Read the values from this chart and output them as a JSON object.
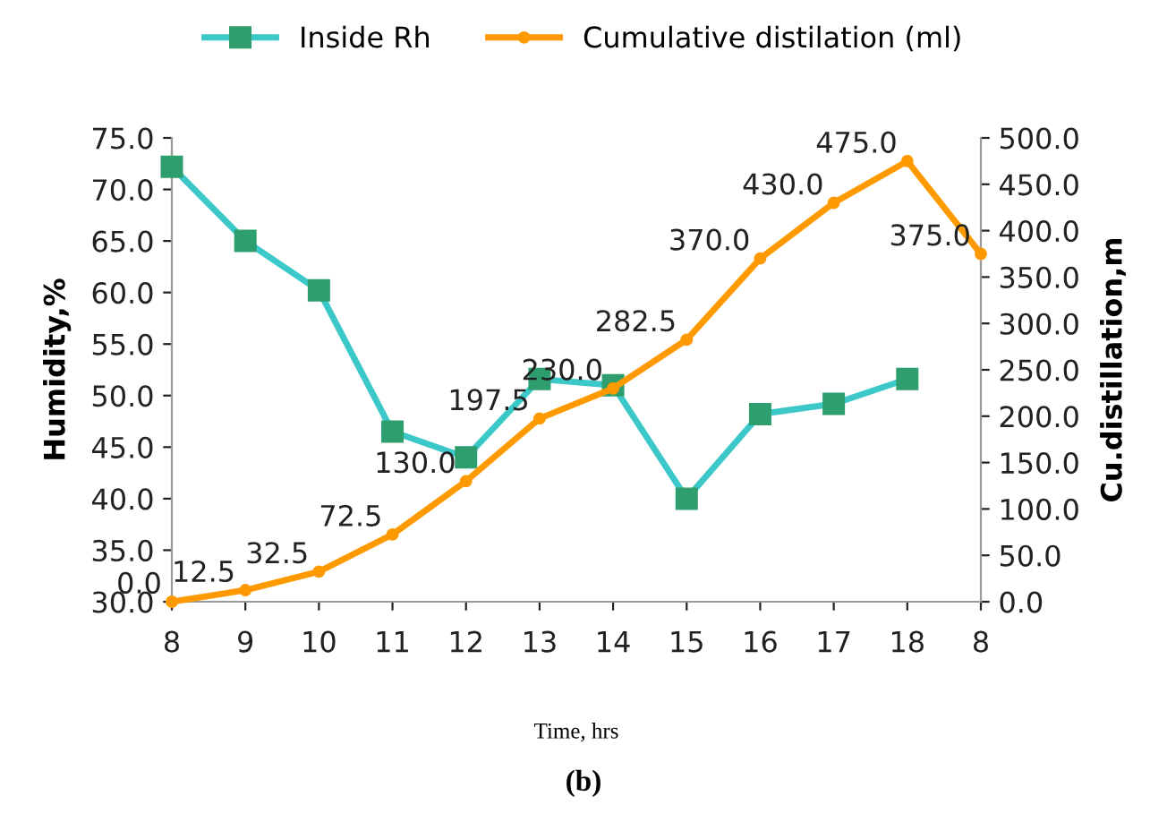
{
  "chart_data": {
    "type": "line",
    "title": "(b)",
    "xlabel": "Time, hrs",
    "ylabel": "Humidity,%",
    "y2label": "Cu.distillation,m",
    "categories": [
      "8",
      "9",
      "10",
      "11",
      "12",
      "13",
      "14",
      "15",
      "16",
      "17",
      "18",
      "8"
    ],
    "series": [
      {
        "name": "Inside Rh",
        "color": "#3cc8c8",
        "marker": "square",
        "values": [
          72.2,
          65.0,
          60.2,
          46.5,
          44.0,
          51.6,
          51.0,
          40.0,
          48.2,
          49.2,
          51.6,
          null
        ]
      },
      {
        "name": "Cumulative distilation (ml)",
        "color": "#ff9900",
        "marker": "circle",
        "axis": "y2",
        "value_labels": [
          "0.0",
          "12.5",
          "32.5",
          "72.5",
          "130.0",
          "197.5",
          "230.0",
          "282.5",
          "370.0",
          "430.0",
          "475.0",
          "375.0"
        ],
        "values": [
          0.0,
          12.5,
          32.5,
          72.5,
          130.0,
          197.5,
          230.0,
          282.5,
          370.0,
          430.0,
          475.0,
          375.0
        ]
      }
    ],
    "ylim": [
      30,
      75
    ],
    "yticks": [
      {
        "value": 30,
        "label": "30.0"
      },
      {
        "value": 35,
        "label": "35.0"
      },
      {
        "value": 40,
        "label": "40.0"
      },
      {
        "value": 45,
        "label": "45.0"
      },
      {
        "value": 50,
        "label": "50.0"
      },
      {
        "value": 55,
        "label": "55.0"
      },
      {
        "value": 60,
        "label": "60.0"
      },
      {
        "value": 65,
        "label": "65.0"
      },
      {
        "value": 70,
        "label": "70.0"
      },
      {
        "value": 75,
        "label": "75.0"
      }
    ],
    "y2lim": [
      0,
      500
    ],
    "y2ticks": [
      {
        "value": 0,
        "label": "0.0"
      },
      {
        "value": 50,
        "label": "50.0"
      },
      {
        "value": 100,
        "label": "100.0"
      },
      {
        "value": 150,
        "label": "150.0"
      },
      {
        "value": 200,
        "label": "200.0"
      },
      {
        "value": 250,
        "label": "250.0"
      },
      {
        "value": 300,
        "label": "300.0"
      },
      {
        "value": 350,
        "label": "350.0"
      },
      {
        "value": 400,
        "label": "400.0"
      },
      {
        "value": 450,
        "label": "450.0"
      },
      {
        "value": 500,
        "label": "500.0"
      }
    ],
    "grid": false,
    "legend": "top"
  }
}
